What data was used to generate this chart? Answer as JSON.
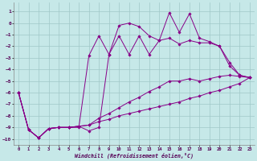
{
  "xlabel": "Windchill (Refroidissement éolien,°C)",
  "background_color": "#c6e8e8",
  "grid_color": "#a0c8c8",
  "line_color": "#880088",
  "xlim": [
    -0.5,
    23.5
  ],
  "ylim": [
    -10.5,
    1.8
  ],
  "yticks": [
    1,
    0,
    -1,
    -2,
    -3,
    -4,
    -5,
    -6,
    -7,
    -8,
    -9,
    -10
  ],
  "xticks": [
    0,
    1,
    2,
    3,
    4,
    5,
    6,
    7,
    8,
    9,
    10,
    11,
    12,
    13,
    14,
    15,
    16,
    17,
    18,
    19,
    20,
    21,
    22,
    23
  ],
  "lines": [
    {
      "x": [
        0,
        1,
        2,
        3,
        4,
        5,
        6,
        7,
        8,
        9,
        10,
        11,
        12,
        13,
        14,
        15,
        16,
        17,
        18,
        19,
        20,
        21,
        22,
        23
      ],
      "y": [
        -6.0,
        -9.2,
        -9.9,
        -9.1,
        -9.0,
        -9.0,
        -8.9,
        -9.3,
        -9.0,
        -2.7,
        -0.2,
        0.0,
        -0.3,
        -1.1,
        -1.5,
        0.9,
        -0.8,
        0.8,
        -1.3,
        -1.6,
        -2.0,
        -3.7,
        -4.5,
        -4.7
      ]
    },
    {
      "x": [
        0,
        1,
        2,
        3,
        4,
        5,
        6,
        7,
        8,
        9,
        10,
        11,
        12,
        13,
        14,
        15,
        16,
        17,
        18,
        19,
        20,
        21,
        22,
        23
      ],
      "y": [
        -6.0,
        -9.2,
        -9.9,
        -9.1,
        -9.0,
        -9.0,
        -9.0,
        -2.8,
        -1.1,
        -2.7,
        -1.1,
        -2.7,
        -1.1,
        -2.7,
        -1.5,
        -1.3,
        -1.8,
        -1.5,
        -1.7,
        -1.7,
        -2.0,
        -3.4,
        -4.5,
        -4.7
      ]
    },
    {
      "x": [
        0,
        1,
        2,
        3,
        4,
        5,
        6,
        7,
        8,
        9,
        10,
        11,
        12,
        13,
        14,
        15,
        16,
        17,
        18,
        19,
        20,
        21,
        22,
        23
      ],
      "y": [
        -6.0,
        -9.2,
        -9.9,
        -9.1,
        -9.0,
        -9.0,
        -8.9,
        -8.8,
        -8.2,
        -7.8,
        -7.3,
        -6.8,
        -6.4,
        -5.9,
        -5.5,
        -5.0,
        -5.0,
        -4.8,
        -5.0,
        -4.8,
        -4.6,
        -4.5,
        -4.6,
        -4.7
      ]
    },
    {
      "x": [
        0,
        1,
        2,
        3,
        4,
        5,
        6,
        7,
        8,
        9,
        10,
        11,
        12,
        13,
        14,
        15,
        16,
        17,
        18,
        19,
        20,
        21,
        22,
        23
      ],
      "y": [
        -6.0,
        -9.2,
        -9.9,
        -9.1,
        -9.0,
        -9.0,
        -8.9,
        -8.8,
        -8.5,
        -8.3,
        -8.0,
        -7.8,
        -7.6,
        -7.4,
        -7.2,
        -7.0,
        -6.8,
        -6.5,
        -6.3,
        -6.0,
        -5.8,
        -5.5,
        -5.2,
        -4.7
      ]
    }
  ]
}
